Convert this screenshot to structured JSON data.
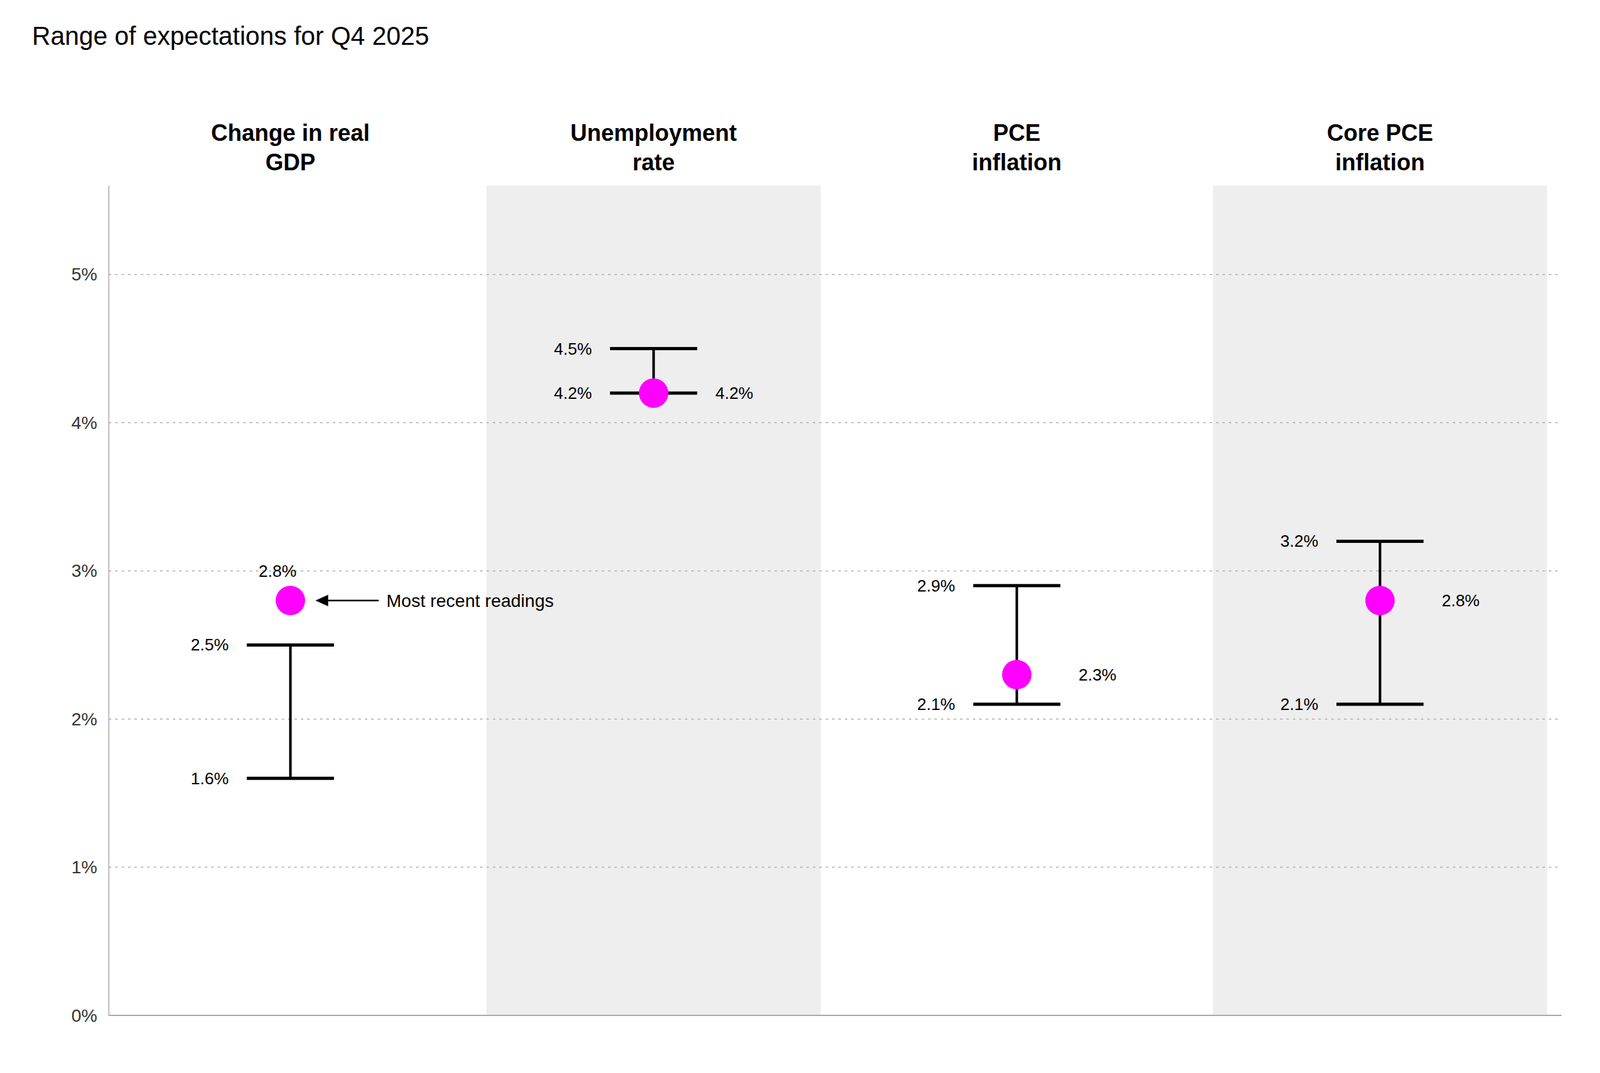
{
  "chart_data": {
    "type": "range",
    "title": "Range of expectations for Q4 2025",
    "categories": [
      "Change in real\nGDP",
      "Unemployment\nrate",
      "PCE\ninflation",
      "Core PCE\ninflation"
    ],
    "series": [
      {
        "type": "range",
        "color": "#000000",
        "values": [
          1.6,
          4.2,
          2.1,
          2.1
        ],
        "value_labels": [
          "1.6%",
          "4.2%",
          "2.1%",
          "2.1%"
        ]
      },
      {
        "type": "range",
        "color": "#000000",
        "values": [
          2.5,
          4.5,
          2.9,
          3.2
        ],
        "value_labels": [
          "2.5%",
          "4.5%",
          "2.9%",
          "3.2%"
        ]
      },
      {
        "type": "scatter",
        "marker": "circle",
        "color": "#ff00ff",
        "values": [
          2.8,
          4.2,
          2.3,
          2.8
        ],
        "value_labels": [
          "2.8%",
          "4.2%",
          "2.3%",
          "2.8%"
        ]
      }
    ],
    "annotations": [
      "Most recent readings"
    ],
    "ylim": [
      0,
      5.6
    ],
    "yticks": [
      {
        "value": 0,
        "label": "0%"
      },
      {
        "value": 1,
        "label": "1%"
      },
      {
        "value": 2,
        "label": "2%"
      },
      {
        "value": 3,
        "label": "3%"
      },
      {
        "value": 4,
        "label": "4%"
      },
      {
        "value": 5,
        "label": "5%"
      }
    ],
    "grid": true
  }
}
